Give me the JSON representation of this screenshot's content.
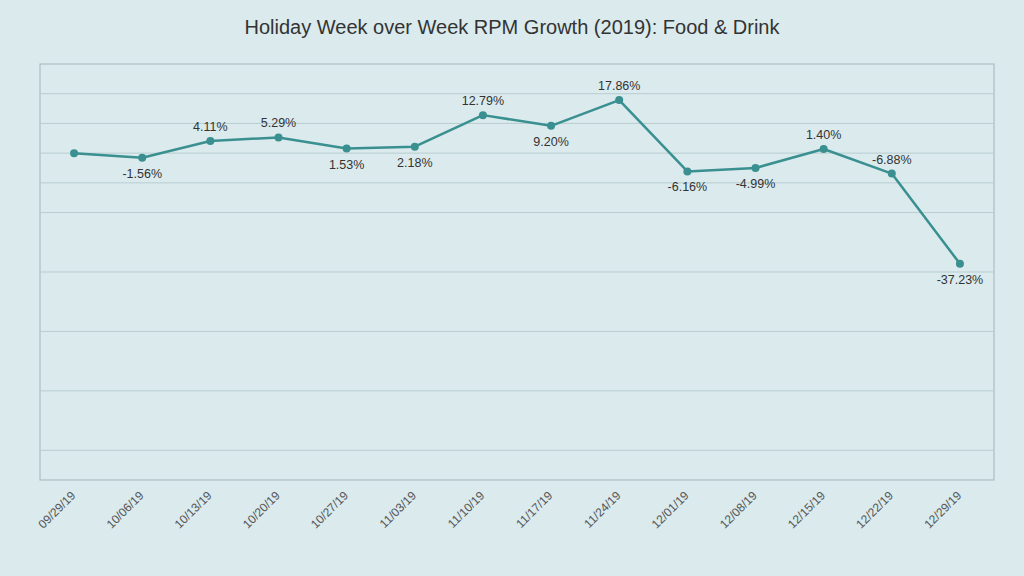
{
  "chart_data": {
    "type": "line",
    "title": "Holiday Week over Week RPM Growth (2019): Food & Drink",
    "categories": [
      "09/29/19",
      "10/06/19",
      "10/13/19",
      "10/20/19",
      "10/27/19",
      "11/03/19",
      "11/10/19",
      "11/17/19",
      "11/24/19",
      "12/01/19",
      "12/08/19",
      "12/15/19",
      "12/22/19",
      "12/29/19"
    ],
    "values": [
      0.0,
      -1.56,
      4.11,
      5.29,
      1.53,
      2.18,
      12.79,
      9.2,
      17.86,
      -6.16,
      -4.99,
      1.4,
      -6.88,
      -37.23
    ],
    "value_labels": [
      null,
      "-1.56%",
      "4.11%",
      "5.29%",
      "1.53%",
      "2.18%",
      "12.79%",
      "9.20%",
      "17.86%",
      "-6.16%",
      "-4.99%",
      "1.40%",
      "-6.88%",
      "-37.23%"
    ],
    "data_labels": true,
    "color": "#3a9090",
    "marker": "circle",
    "ylim": [
      -110,
      30
    ],
    "yticks": [
      -100,
      -80,
      -60,
      -40,
      -20,
      -10,
      0,
      10,
      20
    ],
    "grid": true,
    "tick_labels": "x"
  }
}
